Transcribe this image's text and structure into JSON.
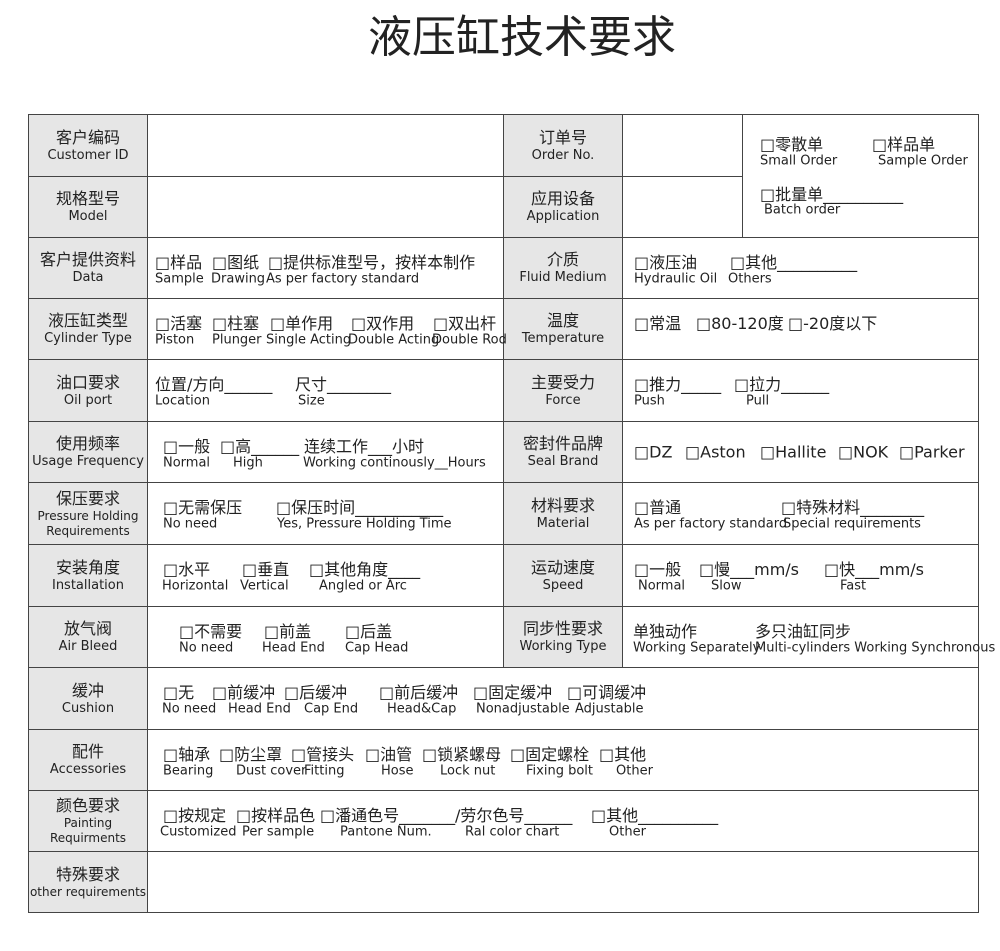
{
  "title": "液压缸技术要求",
  "order_type": {
    "options": [
      {
        "zh": "□零散单",
        "en": "Small Order"
      },
      {
        "zh": "□样品单",
        "en": "Sample Order"
      },
      {
        "zh": "□批量单__________",
        "en": "Batch order"
      }
    ]
  },
  "rows": [
    {
      "cells": [
        {
          "label": {
            "zh": "客户编码",
            "en": "Customer ID"
          },
          "options": []
        },
        {
          "label": {
            "zh": "订单号",
            "en": "Order No."
          },
          "options": []
        }
      ]
    },
    {
      "cells": [
        {
          "label": {
            "zh": "规格型号",
            "en": "Model"
          },
          "options": []
        },
        {
          "label": {
            "zh": "应用设备",
            "en": "Application"
          },
          "options": []
        }
      ]
    },
    {
      "cells": [
        {
          "label": {
            "zh": "客户提供资料",
            "en": "Data"
          },
          "options": [
            {
              "zh": "□样品",
              "en": "Sample"
            },
            {
              "zh": "□图纸",
              "en": "Drawing"
            },
            {
              "zh": "□提供标准型号，按样本制作",
              "en": "As per factory standard"
            }
          ]
        },
        {
          "label": {
            "zh": "介质",
            "en": "Fluid Medium"
          },
          "options": [
            {
              "zh": "□液压油",
              "en": "Hydraulic Oil"
            },
            {
              "zh": "□其他__________",
              "en": "Others"
            }
          ]
        }
      ]
    },
    {
      "cells": [
        {
          "label": {
            "zh": "液压缸类型",
            "en": "Cylinder Type"
          },
          "options": [
            {
              "zh": "□活塞",
              "en": "Piston"
            },
            {
              "zh": "□柱塞",
              "en": "Plunger"
            },
            {
              "zh": "□单作用",
              "en": "Single Acting"
            },
            {
              "zh": "□双作用",
              "en": "Double Acting"
            },
            {
              "zh": "□双出杆",
              "en": "Double Rod"
            }
          ]
        },
        {
          "label": {
            "zh": "温度",
            "en": "Temperature"
          },
          "options": [
            {
              "zh": "□常温"
            },
            {
              "zh": "□80-120度"
            },
            {
              "zh": "□-20度以下"
            }
          ]
        }
      ]
    },
    {
      "cells": [
        {
          "label": {
            "zh": "油口要求",
            "en": "Oil port"
          },
          "options": [
            {
              "zh": "位置/方向______",
              "en": "Location"
            },
            {
              "zh": "尺寸________",
              "en": "Size"
            }
          ]
        },
        {
          "label": {
            "zh": "主要受力",
            "en": "Force"
          },
          "options": [
            {
              "zh": "□推力_____",
              "en": "Push"
            },
            {
              "zh": "□拉力______",
              "en": "Pull"
            }
          ]
        }
      ]
    },
    {
      "cells": [
        {
          "label": {
            "zh": "使用频率",
            "en": "Usage Frequency"
          },
          "options": [
            {
              "zh": "□一般",
              "en": "Normal"
            },
            {
              "zh": "□高______",
              "en": "High"
            },
            {
              "zh": "连续工作___小时",
              "en": "Working continously__Hours"
            }
          ]
        },
        {
          "label": {
            "zh": "密封件品牌",
            "en": "Seal Brand"
          },
          "options": [
            {
              "zh": "□DZ"
            },
            {
              "zh": "□Aston"
            },
            {
              "zh": "□Hallite"
            },
            {
              "zh": "□NOK"
            },
            {
              "zh": "□Parker"
            }
          ]
        }
      ]
    },
    {
      "cells": [
        {
          "label": {
            "zh": "保压要求",
            "en": "Pressure Holding Requirements"
          },
          "options": [
            {
              "zh": "□无需保压",
              "en": "No need"
            },
            {
              "zh": "□保压时间___________",
              "en": "Yes, Pressure Holding Time"
            }
          ]
        },
        {
          "label": {
            "zh": "材料要求",
            "en": "Material"
          },
          "options": [
            {
              "zh": "□普通",
              "en": "As per factory standard"
            },
            {
              "zh": "□特殊材料________",
              "en": "Special requirements"
            }
          ]
        }
      ]
    },
    {
      "cells": [
        {
          "label": {
            "zh": "安装角度",
            "en": "Installation"
          },
          "options": [
            {
              "zh": "□水平",
              "en": "Horizontal"
            },
            {
              "zh": "□垂直",
              "en": "Vertical"
            },
            {
              "zh": "□其他角度____",
              "en": "Angled or Arc"
            }
          ]
        },
        {
          "label": {
            "zh": "运动速度",
            "en": "Speed"
          },
          "options": [
            {
              "zh": "□一般",
              "en": "Normal"
            },
            {
              "zh": "□慢___mm/s",
              "en": "Slow"
            },
            {
              "zh": "□快___mm/s",
              "en": "Fast"
            }
          ]
        }
      ]
    },
    {
      "cells": [
        {
          "label": {
            "zh": "放气阀",
            "en": "Air Bleed"
          },
          "options": [
            {
              "zh": "□不需要",
              "en": "No need"
            },
            {
              "zh": "□前盖",
              "en": "Head End"
            },
            {
              "zh": "□后盖",
              "en": "Cap Head"
            }
          ]
        },
        {
          "label": {
            "zh": "同步性要求",
            "en": "Working Type"
          },
          "options": [
            {
              "zh": "单独动作",
              "en": "Working Separately"
            },
            {
              "zh": "多只油缸同步",
              "en": "Multi-cylinders Working Synchronous"
            }
          ]
        }
      ]
    },
    {
      "cells": [
        {
          "label": {
            "zh": "缓冲",
            "en": "Cushion"
          },
          "options": [
            {
              "zh": "□无",
              "en": "No need"
            },
            {
              "zh": "□前缓冲",
              "en": "Head End"
            },
            {
              "zh": "□后缓冲",
              "en": "Cap End"
            },
            {
              "zh": "□前后缓冲",
              "en": "Head&Cap"
            },
            {
              "zh": "□固定缓冲",
              "en": "Nonadjustable"
            },
            {
              "zh": "□可调缓冲",
              "en": "Adjustable"
            }
          ]
        }
      ]
    },
    {
      "cells": [
        {
          "label": {
            "zh": "配件",
            "en": "Accessories"
          },
          "options": [
            {
              "zh": "□轴承",
              "en": "Bearing"
            },
            {
              "zh": "□防尘罩",
              "en": "Dust cover"
            },
            {
              "zh": "□管接头",
              "en": "Fitting"
            },
            {
              "zh": "□油管",
              "en": "Hose"
            },
            {
              "zh": "□锁紧螺母",
              "en": "Lock nut"
            },
            {
              "zh": "□固定螺栓",
              "en": "Fixing bolt"
            },
            {
              "zh": "□其他",
              "en": "Other"
            }
          ]
        }
      ]
    },
    {
      "cells": [
        {
          "label": {
            "zh": "颜色要求",
            "en": "Painting Requirments"
          },
          "options": [
            {
              "zh": "□按规定",
              "en": "Customized"
            },
            {
              "zh": "□按样品色",
              "en": "Per sample"
            },
            {
              "zh": "□潘通色号_______",
              "en": "Pantone Num."
            },
            {
              "zh": "/劳尔色号______",
              "en": "Ral color chart"
            },
            {
              "zh": "□其他__________",
              "en": "Other"
            }
          ]
        }
      ]
    },
    {
      "cells": [
        {
          "label": {
            "zh": "特殊要求",
            "en": "other requirements"
          },
          "options": []
        }
      ]
    }
  ]
}
